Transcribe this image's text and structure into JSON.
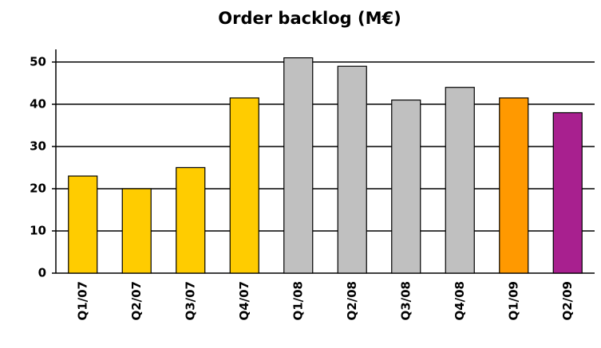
{
  "chart_data": {
    "type": "bar",
    "title": "Order backlog (M€)",
    "categories": [
      "Q1/07",
      "Q2/07",
      "Q3/07",
      "Q4/07",
      "Q1/08",
      "Q2/08",
      "Q3/08",
      "Q4/08",
      "Q1/09",
      "Q2/09"
    ],
    "values": [
      23,
      20,
      25,
      41.5,
      51,
      49,
      41,
      44,
      41.5,
      38
    ],
    "colors": [
      "#ffcc00",
      "#ffcc00",
      "#ffcc00",
      "#ffcc00",
      "#c0c0c0",
      "#c0c0c0",
      "#c0c0c0",
      "#c0c0c0",
      "#ff9900",
      "#a8208f"
    ],
    "ylim": [
      0,
      53
    ],
    "yticks": [
      0,
      10,
      20,
      30,
      40,
      50
    ],
    "grid": true
  }
}
